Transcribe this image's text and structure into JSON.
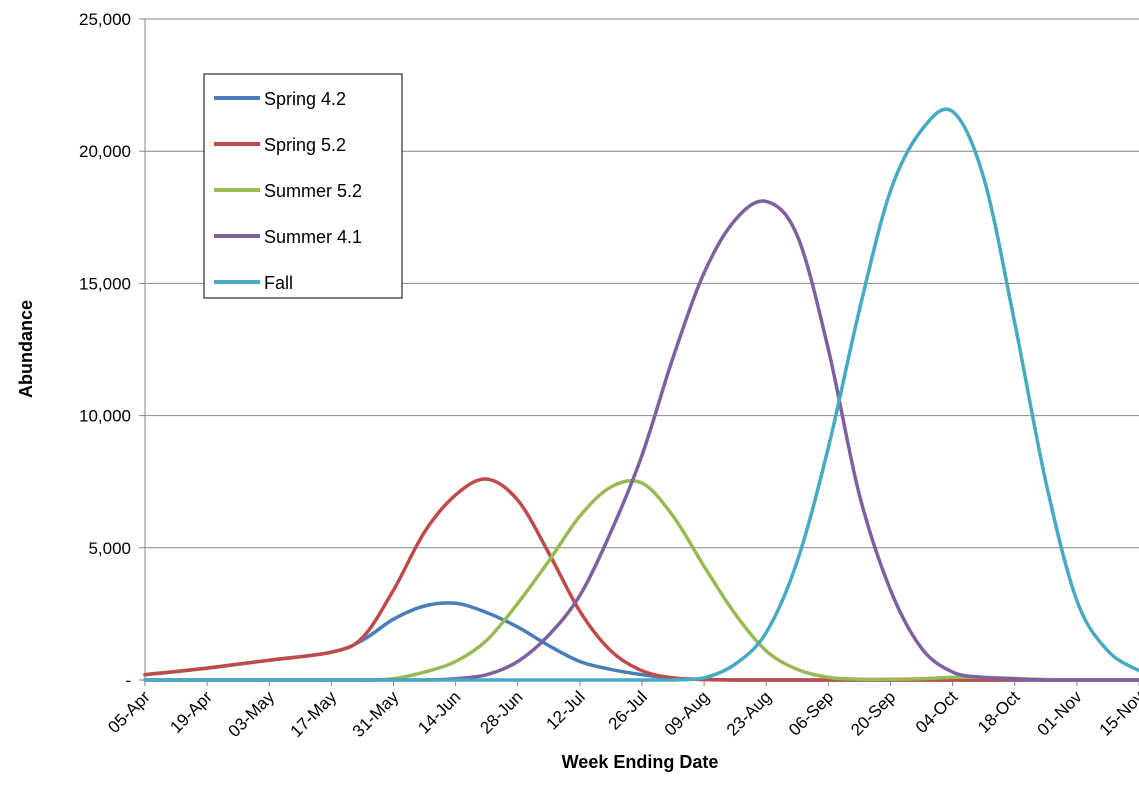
{
  "chart_data": {
    "type": "line",
    "title": "",
    "xlabel": "Week Ending Date",
    "ylabel": "Abundance",
    "ylim": [
      0,
      25000
    ],
    "yticks": [
      0,
      5000,
      10000,
      15000,
      20000,
      25000
    ],
    "ytick_labels": [
      "-",
      "5,000",
      "10,000",
      "15,000",
      "20,000",
      "25,000"
    ],
    "x_range": [
      "05-Apr",
      "15-Nov"
    ],
    "xticks": [
      "05-Apr",
      "19-Apr",
      "03-May",
      "17-May",
      "31-May",
      "14-Jun",
      "28-Jun",
      "12-Jul",
      "26-Jul",
      "09-Aug",
      "23-Aug",
      "06-Sep",
      "20-Sep",
      "04-Oct",
      "18-Oct",
      "01-Nov",
      "15-Nov"
    ],
    "grid": "horizontal",
    "legend_position": "top-left",
    "x": [
      "05-Apr",
      "19-Apr",
      "03-May",
      "17-May",
      "24-May",
      "31-May",
      "07-Jun",
      "14-Jun",
      "21-Jun",
      "28-Jun",
      "05-Jul",
      "12-Jul",
      "19-Jul",
      "26-Jul",
      "02-Aug",
      "09-Aug",
      "16-Aug",
      "23-Aug",
      "30-Aug",
      "06-Sep",
      "13-Sep",
      "20-Sep",
      "27-Sep",
      "04-Oct",
      "11-Oct",
      "18-Oct",
      "25-Oct",
      "01-Nov",
      "08-Nov",
      "15-Nov"
    ],
    "series": [
      {
        "name": "Spring 4.2",
        "color": "#4a7ebb",
        "values": [
          200,
          450,
          750,
          1050,
          1500,
          2300,
          2800,
          2900,
          2550,
          2000,
          1300,
          700,
          400,
          200,
          60,
          20,
          0,
          0,
          0,
          0,
          0,
          0,
          0,
          0,
          0,
          0,
          0,
          0,
          0,
          0
        ]
      },
      {
        "name": "Spring 5.2",
        "color": "#be4b48",
        "values": [
          200,
          450,
          750,
          1050,
          1600,
          3400,
          5600,
          7000,
          7600,
          6800,
          4800,
          2600,
          1100,
          350,
          80,
          20,
          0,
          0,
          0,
          0,
          0,
          0,
          0,
          0,
          0,
          0,
          0,
          0,
          0,
          0
        ]
      },
      {
        "name": "Summer 5.2",
        "color": "#98b954",
        "values": [
          0,
          0,
          0,
          0,
          0,
          50,
          300,
          700,
          1500,
          2900,
          4500,
          6200,
          7300,
          7450,
          6200,
          4300,
          2500,
          1100,
          400,
          100,
          30,
          30,
          50,
          100,
          100,
          60,
          20,
          0,
          0,
          0
        ]
      },
      {
        "name": "Summer 4.1",
        "color": "#7d60a0",
        "values": [
          0,
          0,
          0,
          0,
          0,
          0,
          0,
          50,
          200,
          700,
          1700,
          3200,
          5600,
          8500,
          12200,
          15400,
          17400,
          18100,
          16800,
          12500,
          7000,
          3400,
          1200,
          300,
          100,
          40,
          0,
          0,
          0,
          0
        ]
      },
      {
        "name": "Fall",
        "color": "#46aac5",
        "values": [
          0,
          0,
          0,
          0,
          0,
          0,
          0,
          0,
          0,
          0,
          0,
          0,
          0,
          0,
          0,
          80,
          600,
          1800,
          4500,
          8800,
          14000,
          18500,
          20800,
          21500,
          19000,
          13500,
          7500,
          3000,
          1100,
          350
        ]
      }
    ]
  }
}
